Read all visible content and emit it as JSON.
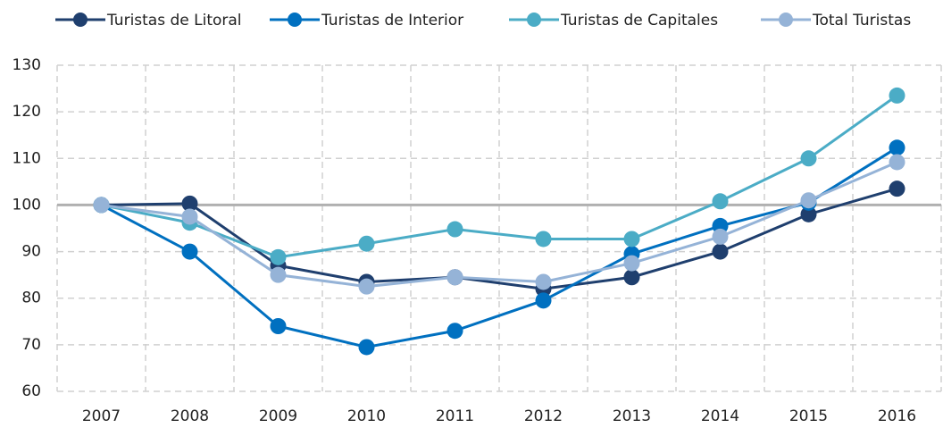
{
  "chart_data": {
    "type": "line",
    "categories": [
      "2007",
      "2008",
      "2009",
      "2010",
      "2011",
      "2012",
      "2013",
      "2014",
      "2015",
      "2016"
    ],
    "series": [
      {
        "name": "Turistas de Litoral",
        "color": "#1f3f6e",
        "values": [
          100,
          100.3,
          87,
          83.5,
          84.5,
          82,
          84.5,
          90,
          98,
          103.5
        ]
      },
      {
        "name": "Turistas de Interior",
        "color": "#0070c0",
        "values": [
          100,
          90,
          74,
          69.5,
          73,
          79.5,
          89.5,
          95.5,
          100.5,
          112.3
        ]
      },
      {
        "name": "Turistas de Capitales",
        "color": "#4bacc6",
        "values": [
          100,
          96.2,
          88.8,
          91.7,
          94.8,
          92.7,
          92.7,
          100.8,
          110,
          123.5
        ]
      },
      {
        "name": "Total Turistas",
        "color": "#95b3d7",
        "values": [
          100,
          97.5,
          85,
          82.5,
          84.5,
          83.5,
          87.5,
          93.2,
          101,
          109.2
        ]
      }
    ],
    "ylim": [
      60,
      130
    ],
    "yticks": [
      60,
      70,
      80,
      90,
      100,
      110,
      120,
      130
    ],
    "reference_line": 100,
    "grid": true,
    "legend": "top"
  }
}
